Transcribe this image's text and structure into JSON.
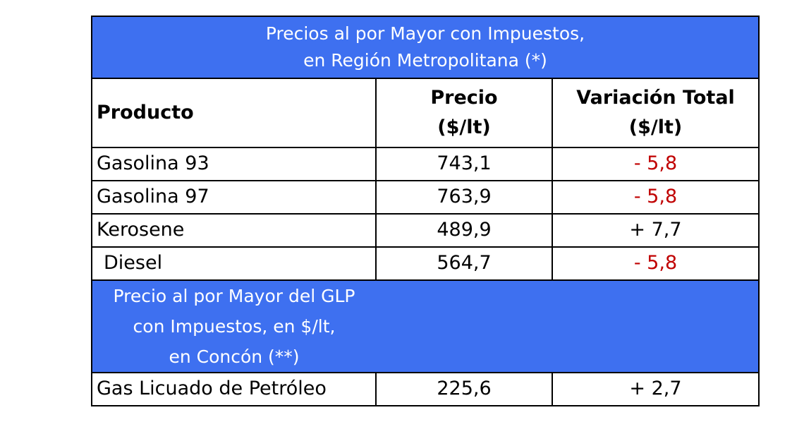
{
  "title": {
    "line1": "Precios al por Mayor con Impuestos,",
    "line2": "en Región Metropolitana (*)"
  },
  "headers": {
    "product": "Producto",
    "price_line1": "Precio",
    "price_line2": "($/lt)",
    "variation_line1": "Variación  Total",
    "variation_line2": "($/lt)"
  },
  "rows": [
    {
      "product": "Gasolina 93",
      "price": "743,1",
      "variation": "- 5,8",
      "variation_color": "#c00000"
    },
    {
      "product": "Gasolina 97",
      "price": "763,9",
      "variation": "- 5,8",
      "variation_color": "#c00000"
    },
    {
      "product": "Kerosene",
      "price": "489,9",
      "variation": "+ 7,7",
      "variation_color": "#000000"
    },
    {
      "product": "Diesel",
      "price": "564,7",
      "variation": "- 5,8",
      "variation_color": "#c00000"
    }
  ],
  "glp_section": {
    "line1": "Precio al por Mayor del GLP",
    "line2": "con Impuestos,  en $/lt,",
    "line3": "en Concón (**)"
  },
  "glp_row": {
    "product": "Gas Licuado de Petróleo",
    "price": "225,6",
    "variation": "+ 2,7",
    "variation_color": "#000000"
  },
  "colors": {
    "header_blue": "#3e70f0",
    "negative_red": "#c00000"
  }
}
